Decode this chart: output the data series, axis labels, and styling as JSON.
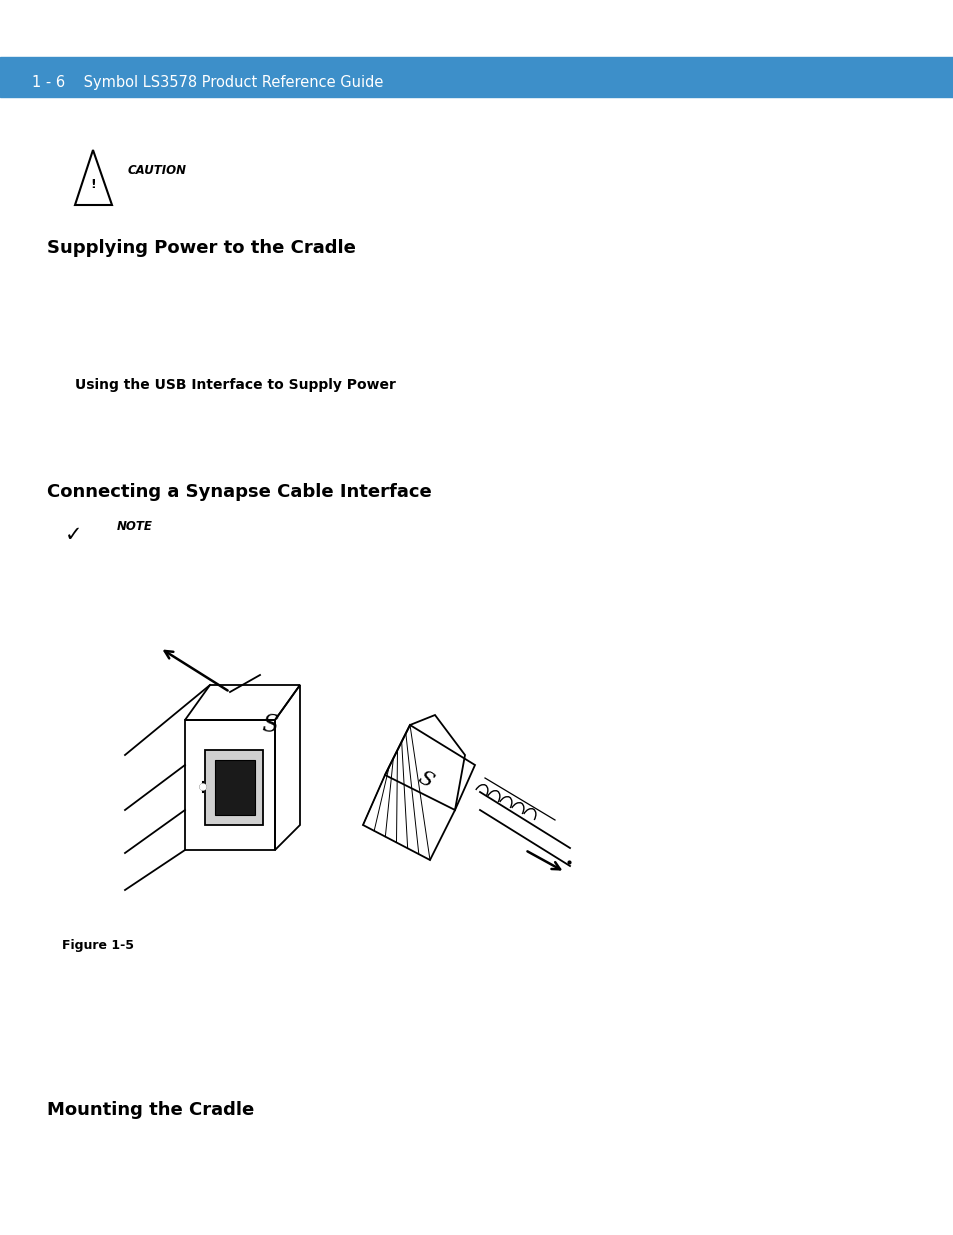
{
  "page_bg": "#ffffff",
  "header_bg": "#3d8fc9",
  "header_text": "1 - 6    Symbol LS3578 Product Reference Guide",
  "header_text_color": "#ffffff",
  "caution_text": "CAUTION",
  "section1_title": "Supplying Power to the Cradle",
  "usb_label": "Using the USB Interface to Supply Power",
  "section2_title": "Connecting a Synapse Cable Interface",
  "note_text": "NOTE",
  "figure_label": "Figure 1-5",
  "section3_title": "Mounting the Cradle"
}
